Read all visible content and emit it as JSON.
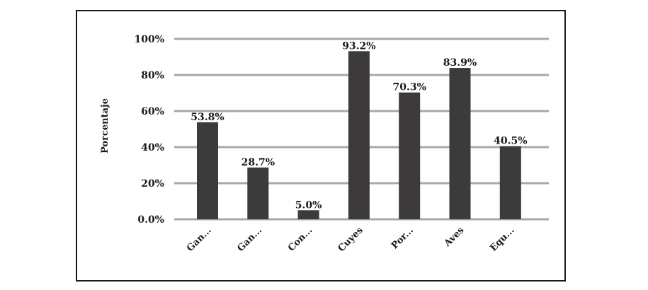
{
  "chart_data": {
    "type": "bar",
    "categories": [
      "Gan...",
      "Gan...",
      "Con...",
      "Cuyes",
      "Por...",
      "Aves",
      "Equ..."
    ],
    "values": [
      53.8,
      28.7,
      5.0,
      93.2,
      70.3,
      83.9,
      40.5
    ],
    "data_labels": [
      "53.8%",
      "28.7%",
      "5.0%",
      "93.2%",
      "70.3%",
      "83.9%",
      "40.5%"
    ],
    "ylabel": "Porcentaje",
    "xlabel": "",
    "ylim": [
      0,
      100
    ],
    "yticks": [
      "0.0%",
      "20%",
      "40%",
      "60%",
      "80%",
      "100%"
    ],
    "grid": true,
    "colors": {
      "bar": "#3d3a3b",
      "grid": "#a8a8a8",
      "text": "#1a1a1a"
    }
  }
}
